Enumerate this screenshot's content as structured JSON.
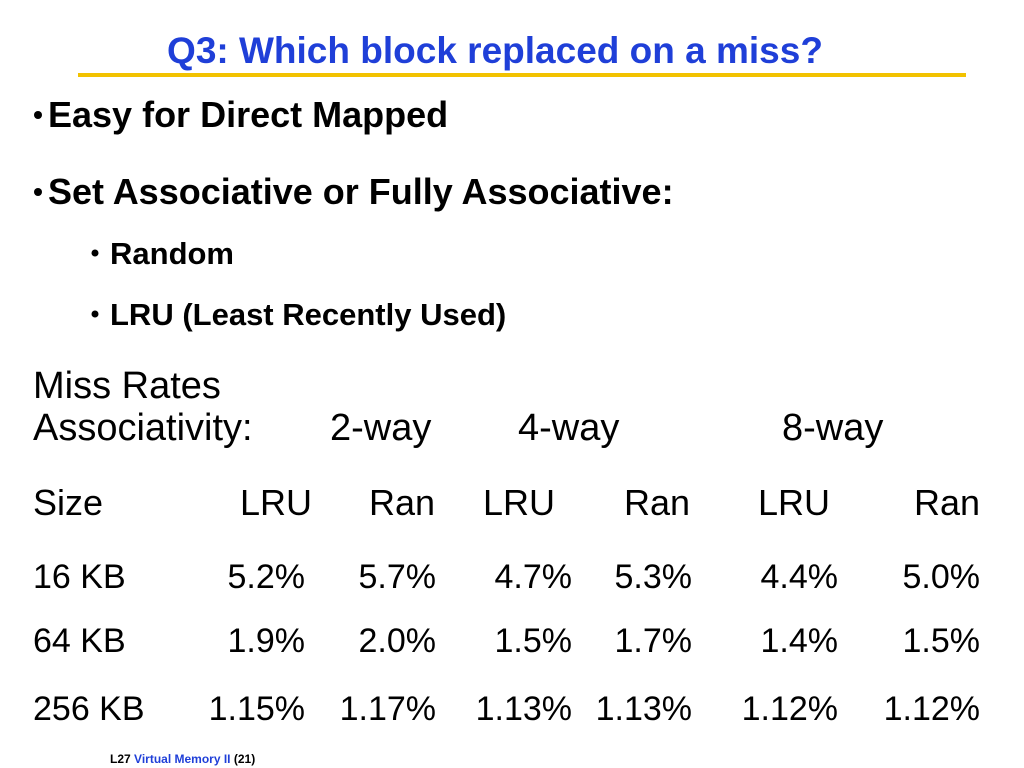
{
  "header": {
    "title": "Q3: Which block replaced on a miss?"
  },
  "bullets": [
    "Easy for Direct Mapped",
    "Set Associative or Fully Associative:"
  ],
  "sub_bullets": [
    "Random",
    "LRU (Least Recently Used)"
  ],
  "miss_rates": {
    "heading": "Miss Rates",
    "associativity_label": "Associativity:",
    "groups": [
      "2-way",
      "4-way",
      "8-way"
    ]
  },
  "table": {
    "header": [
      "Size",
      "LRU",
      "Ran",
      "LRU",
      "Ran",
      "LRU",
      "Ran"
    ],
    "rows": [
      [
        "16 KB",
        "5.2%",
        "5.7%",
        "4.7%",
        "5.3%",
        "4.4%",
        "5.0%"
      ],
      [
        "64 KB",
        "1.9%",
        "2.0%",
        "1.5%",
        "1.7%",
        "1.4%",
        "1.5%"
      ],
      [
        "256 KB",
        "1.15%",
        "1.17%",
        "1.13%",
        "1.13%",
        "1.12%",
        "1.12%"
      ]
    ]
  },
  "footer": {
    "lecture": "L27",
    "topic": "Virtual Memory II",
    "page": "(21)"
  }
}
